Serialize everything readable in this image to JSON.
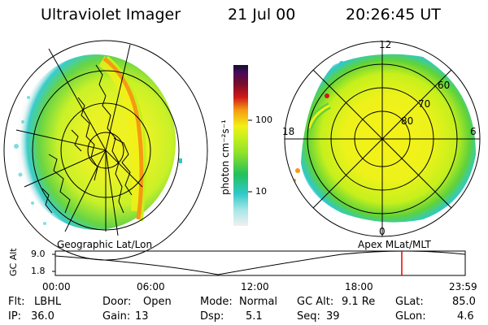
{
  "header": {
    "instrument": "Ultraviolet Imager",
    "date": "21 Jul 00",
    "time": "20:26:45 UT"
  },
  "colors": {
    "low": "#f0f0f0",
    "cyan": "#2ec9c9",
    "green": "#22c05a",
    "yellow_green": "#c6f01c",
    "yellow": "#f2f016",
    "orange": "#f59a12",
    "red": "#d01818",
    "dark_red": "#7a0c2a",
    "top": "#101030",
    "marker": "#e00000"
  },
  "colorbar": {
    "unit_label": "photon cm⁻²s⁻¹",
    "ticks": [
      "100",
      "10"
    ]
  },
  "geo_panel": {
    "label": "Geographic Lat/Lon"
  },
  "polar_panel": {
    "label": "Apex MLat/MLT",
    "mlt_labels": {
      "top": "12",
      "left": "18",
      "right": "6",
      "bottom": "0"
    },
    "lat_labels": [
      "60",
      "70",
      "80"
    ]
  },
  "altitude_plot": {
    "ylabel": "GC Alt",
    "yticks": [
      "9.0",
      "1.8"
    ],
    "xticks": [
      "00:00",
      "06:00",
      "12:00",
      "18:00",
      "23:59"
    ],
    "current_time": "20:26:45"
  },
  "status": {
    "flt_label": "Flt:",
    "flt_value": "LBHL",
    "door_label": "Door:",
    "door_value": "Open",
    "mode_label": "Mode:",
    "mode_value": "Normal",
    "gcalt_label": "GC Alt:",
    "gcalt_value": "9.1 Re",
    "glat_label": "GLat:",
    "glat_value": "85.0",
    "ip_label": "IP:",
    "ip_value": "36.0",
    "gain_label": "Gain:",
    "gain_value": "13",
    "dsp_label": "Dsp:",
    "dsp_value": "5.1",
    "seq_label": "Seq:",
    "seq_value": "39",
    "glon_label": "GLon:",
    "glon_value": "4.6"
  }
}
